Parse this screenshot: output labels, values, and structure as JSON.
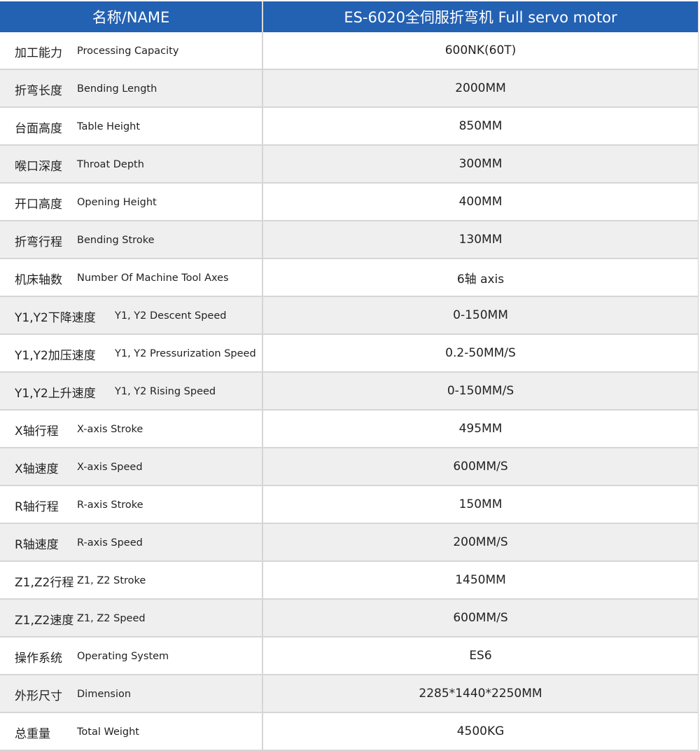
{
  "header": {
    "name": "名称/NAME",
    "model": "ES-6020全伺服折弯机 Full servo motor"
  },
  "colors": {
    "header_bg": "#2361b3",
    "alt_row": "#efefef"
  },
  "rows": [
    {
      "cn": "加工能力",
      "en": "Processing Capacity",
      "value": "600NK(60T)"
    },
    {
      "cn": "折弯长度",
      "en": "Bending Length",
      "value": "2000MM"
    },
    {
      "cn": "台面高度",
      "en": "Table Height",
      "value": "850MM"
    },
    {
      "cn": "喉口深度",
      "en": "Throat Depth",
      "value": "300MM"
    },
    {
      "cn": "开口高度",
      "en": "Opening Height",
      "value": "400MM"
    },
    {
      "cn": "折弯行程",
      "en": "Bending Stroke",
      "value": "130MM"
    },
    {
      "cn": "机床轴数",
      "en": "Number Of Machine Tool Axes",
      "value": "6轴 axis"
    },
    {
      "cn": "Y1,Y2下降速度",
      "en": "Y1, Y2 Descent Speed",
      "value": "0-150MM"
    },
    {
      "cn": "Y1,Y2加压速度",
      "en": "Y1, Y2 Pressurization Speed",
      "value": "0.2-50MM/S"
    },
    {
      "cn": "Y1,Y2上升速度",
      "en": "Y1, Y2 Rising Speed",
      "value": "0-150MM/S"
    },
    {
      "cn": "X轴行程",
      "en": "X-axis Stroke",
      "value": "495MM"
    },
    {
      "cn": "X轴速度",
      "en": "X-axis Speed",
      "value": "600MM/S"
    },
    {
      "cn": "R轴行程",
      "en": "R-axis Stroke",
      "value": "150MM"
    },
    {
      "cn": "R轴速度",
      "en": "R-axis Speed",
      "value": "200MM/S"
    },
    {
      "cn": "Z1,Z2行程",
      "en": "Z1, Z2 Stroke",
      "value": "1450MM"
    },
    {
      "cn": "Z1,Z2速度",
      "en": "Z1, Z2 Speed",
      "value": "600MM/S"
    },
    {
      "cn": "操作系统",
      "en": "Operating System",
      "value": "ES6"
    },
    {
      "cn": "外形尺寸",
      "en": "Dimension",
      "value": "2285*1440*2250MM"
    },
    {
      "cn": "总重量",
      "en": "Total Weight",
      "value": "4500KG"
    }
  ]
}
